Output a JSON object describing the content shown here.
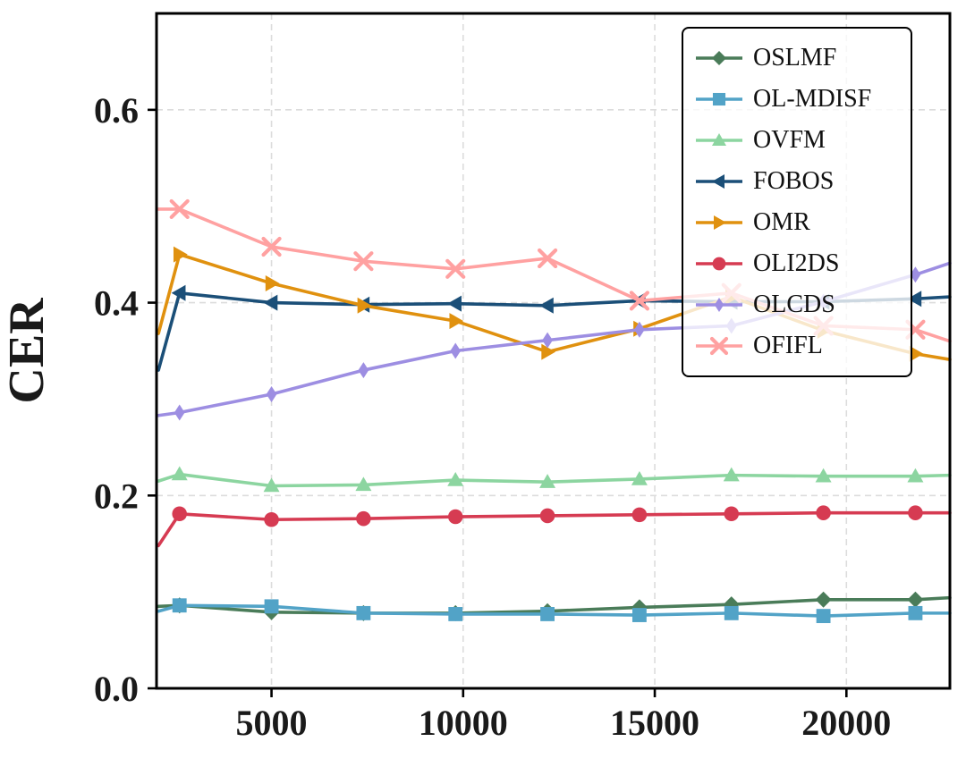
{
  "chart_data": {
    "type": "line",
    "title": "",
    "xlabel": "",
    "ylabel": "CER",
    "xlim": [
      2000,
      22700
    ],
    "ylim": [
      0,
      0.7
    ],
    "xticks": {
      "values": [
        5000,
        10000,
        15000,
        20000
      ],
      "labels": [
        "5000",
        "10000",
        "15000",
        "20000"
      ]
    },
    "yticks": {
      "values": [
        0.0,
        0.2,
        0.4,
        0.6
      ],
      "labels": [
        "0.0",
        "0.2",
        "0.4",
        "0.6"
      ]
    },
    "grid": {
      "show": true,
      "style": "dashed",
      "color": "#dcdcdc"
    },
    "legend": {
      "position": "upper-right",
      "border_color": "#000000",
      "background": "rgba(255,255,255,0.78)"
    },
    "axis_color": "#000000",
    "x": [
      2050,
      2600,
      5000,
      7400,
      9800,
      12200,
      14600,
      17000,
      19400,
      21800,
      22700
    ],
    "series": [
      {
        "name": "OSLMF",
        "color": "#4a7c59",
        "marker": "diamond",
        "values": [
          0.085,
          0.086,
          0.079,
          0.078,
          0.078,
          0.08,
          0.084,
          0.087,
          0.092,
          0.092,
          0.094
        ]
      },
      {
        "name": "OL-MDISF",
        "color": "#52a3c7",
        "marker": "square",
        "values": [
          0.08,
          0.086,
          0.085,
          0.078,
          0.077,
          0.077,
          0.076,
          0.078,
          0.075,
          0.078,
          0.078
        ]
      },
      {
        "name": "OVFM",
        "color": "#8cd5a0",
        "marker": "triangle-up",
        "values": [
          0.215,
          0.222,
          0.21,
          0.211,
          0.216,
          0.214,
          0.217,
          0.221,
          0.22,
          0.22,
          0.221
        ]
      },
      {
        "name": "FOBOS",
        "color": "#1b4f78",
        "marker": "triangle-left",
        "values": [
          0.33,
          0.41,
          0.4,
          0.398,
          0.399,
          0.397,
          0.402,
          0.401,
          0.401,
          0.404,
          0.406
        ]
      },
      {
        "name": "OMR",
        "color": "#e0910f",
        "marker": "triangle-right",
        "values": [
          0.368,
          0.45,
          0.42,
          0.397,
          0.381,
          0.349,
          0.373,
          0.406,
          0.371,
          0.347,
          0.341
        ]
      },
      {
        "name": "OLI2DS",
        "color": "#d63b52",
        "marker": "circle",
        "values": [
          0.148,
          0.181,
          0.175,
          0.176,
          0.178,
          0.179,
          0.18,
          0.181,
          0.182,
          0.182,
          0.182
        ]
      },
      {
        "name": "OLCDS",
        "color": "#9d8ee2",
        "marker": "thin-diamond",
        "values": [
          0.283,
          0.286,
          0.305,
          0.33,
          0.35,
          0.361,
          0.372,
          0.376,
          0.401,
          0.429,
          0.441
        ]
      },
      {
        "name": "OFIFL",
        "color": "#ffa1a1",
        "marker": "x",
        "values": [
          0.497,
          0.497,
          0.458,
          0.443,
          0.435,
          0.446,
          0.402,
          0.41,
          0.376,
          0.372,
          0.36
        ]
      }
    ]
  }
}
